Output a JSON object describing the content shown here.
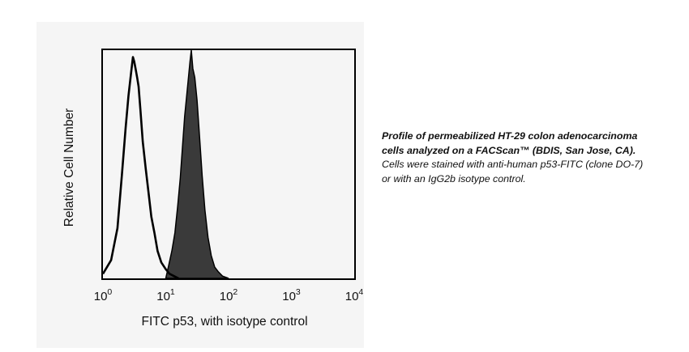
{
  "chart_data": {
    "type": "area",
    "xscale": "log",
    "xlim": [
      1,
      10000
    ],
    "ylim": [
      0,
      1
    ],
    "grid": false,
    "ylabel": "Relative Cell Number",
    "xlabel": "FITC p53, with isotype control",
    "xticks": [
      {
        "value": 1,
        "base": "10",
        "exp": "0"
      },
      {
        "value": 10,
        "base": "10",
        "exp": "1"
      },
      {
        "value": 100,
        "base": "10",
        "exp": "2"
      },
      {
        "value": 1000,
        "base": "10",
        "exp": "3"
      },
      {
        "value": 10000,
        "base": "10",
        "exp": "4"
      }
    ],
    "series": [
      {
        "style": "outline",
        "color": "#000000",
        "x": [
          1.0,
          1.35,
          1.7,
          2.0,
          2.3,
          2.55,
          2.8,
          3.0,
          3.15,
          3.3,
          3.5,
          3.7,
          3.95,
          4.3,
          4.8,
          5.3,
          5.9,
          6.6,
          7.4,
          8.5,
          10.0,
          11.5,
          13.5,
          16.0
        ],
        "y": [
          0.02,
          0.08,
          0.22,
          0.45,
          0.66,
          0.8,
          0.9,
          0.97,
          0.95,
          0.92,
          0.88,
          0.84,
          0.74,
          0.6,
          0.48,
          0.38,
          0.27,
          0.2,
          0.12,
          0.07,
          0.04,
          0.02,
          0.01,
          0.0
        ]
      },
      {
        "style": "filled",
        "color": "#3a3a3a",
        "x": [
          10.0,
          11.0,
          12.5,
          14.0,
          15.5,
          17.0,
          18.5,
          20.0,
          21.5,
          23.0,
          24.3,
          25.5,
          27.0,
          29.0,
          31.5,
          34.5,
          38.0,
          42.0,
          47.0,
          53.0,
          60.0,
          68.0,
          80.0,
          100.0
        ],
        "y": [
          0.0,
          0.05,
          0.12,
          0.2,
          0.32,
          0.44,
          0.58,
          0.71,
          0.8,
          0.88,
          0.95,
          1.0,
          0.92,
          0.88,
          0.78,
          0.62,
          0.45,
          0.3,
          0.18,
          0.1,
          0.05,
          0.03,
          0.01,
          0.0
        ]
      }
    ]
  },
  "caption": {
    "bold_line1": "Profile of permeabilized HT-29 colon adenocarcinoma",
    "bold_line2": "cells analyzed on a FACScan™ (BDIS, San Jose, CA).",
    "line3": "Cells were stained with anti-human p53-FITC (clone DO-7)",
    "line4": "or with an IgG2b isotype control."
  }
}
